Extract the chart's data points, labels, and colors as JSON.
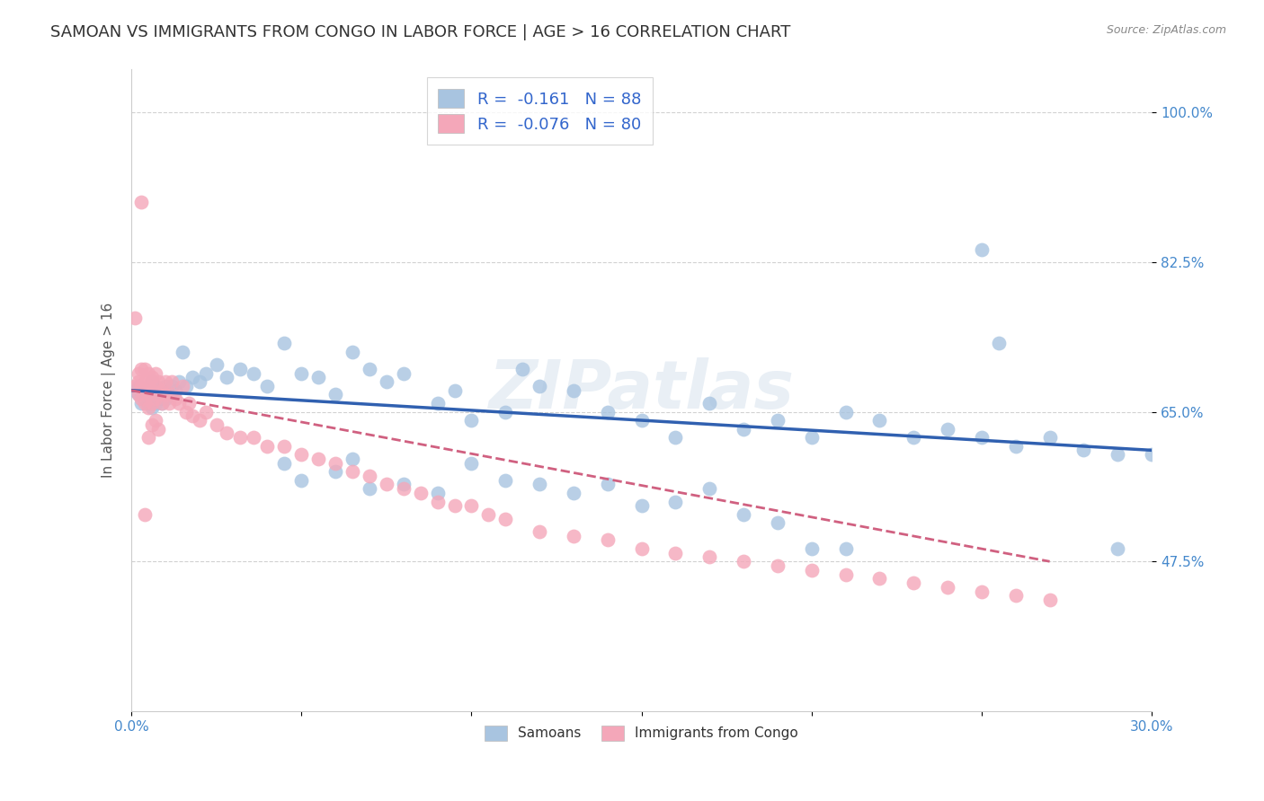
{
  "title": "SAMOAN VS IMMIGRANTS FROM CONGO IN LABOR FORCE | AGE > 16 CORRELATION CHART",
  "source": "Source: ZipAtlas.com",
  "ylabel": "In Labor Force | Age > 16",
  "xlim": [
    0.0,
    0.3
  ],
  "ylim": [
    0.3,
    1.05
  ],
  "xtick_positions": [
    0.0,
    0.05,
    0.1,
    0.15,
    0.2,
    0.25,
    0.3
  ],
  "xticklabels_show": [
    "0.0%",
    "",
    "",
    "",
    "",
    "",
    "30.0%"
  ],
  "ytick_positions": [
    0.475,
    0.65,
    0.825,
    1.0
  ],
  "ytick_labels": [
    "47.5%",
    "65.0%",
    "82.5%",
    "100.0%"
  ],
  "legend_label1": "R =  -0.161   N = 88",
  "legend_label2": "R =  -0.076   N = 80",
  "legend_label1_bottom": "Samoans",
  "legend_label2_bottom": "Immigrants from Congo",
  "samoans_color": "#a8c4e0",
  "congo_color": "#f4a7b9",
  "samoans_line_color": "#3060b0",
  "congo_line_color": "#d06080",
  "watermark": "ZIPatlas",
  "title_fontsize": 13,
  "axis_label_fontsize": 11,
  "tick_fontsize": 11,
  "samoans_x": [
    0.001,
    0.002,
    0.002,
    0.003,
    0.003,
    0.004,
    0.004,
    0.005,
    0.005,
    0.006,
    0.006,
    0.006,
    0.007,
    0.007,
    0.008,
    0.008,
    0.009,
    0.009,
    0.01,
    0.01,
    0.011,
    0.012,
    0.013,
    0.014,
    0.015,
    0.016,
    0.018,
    0.02,
    0.022,
    0.025,
    0.028,
    0.032,
    0.036,
    0.04,
    0.045,
    0.05,
    0.055,
    0.06,
    0.065,
    0.07,
    0.075,
    0.08,
    0.09,
    0.095,
    0.1,
    0.11,
    0.115,
    0.12,
    0.13,
    0.14,
    0.15,
    0.16,
    0.17,
    0.18,
    0.19,
    0.2,
    0.21,
    0.22,
    0.23,
    0.24,
    0.25,
    0.26,
    0.27,
    0.28,
    0.29,
    0.3,
    0.045,
    0.05,
    0.06,
    0.065,
    0.07,
    0.08,
    0.09,
    0.1,
    0.11,
    0.12,
    0.13,
    0.14,
    0.15,
    0.16,
    0.17,
    0.18,
    0.19,
    0.2,
    0.21,
    0.29,
    0.25,
    0.255
  ],
  "samoans_y": [
    0.675,
    0.67,
    0.68,
    0.66,
    0.67,
    0.665,
    0.675,
    0.66,
    0.67,
    0.655,
    0.67,
    0.685,
    0.66,
    0.68,
    0.665,
    0.675,
    0.66,
    0.67,
    0.665,
    0.68,
    0.67,
    0.68,
    0.675,
    0.685,
    0.72,
    0.68,
    0.69,
    0.685,
    0.695,
    0.705,
    0.69,
    0.7,
    0.695,
    0.68,
    0.73,
    0.695,
    0.69,
    0.67,
    0.72,
    0.7,
    0.685,
    0.695,
    0.66,
    0.675,
    0.64,
    0.65,
    0.7,
    0.68,
    0.675,
    0.65,
    0.64,
    0.62,
    0.66,
    0.63,
    0.64,
    0.62,
    0.65,
    0.64,
    0.62,
    0.63,
    0.62,
    0.61,
    0.62,
    0.605,
    0.6,
    0.6,
    0.59,
    0.57,
    0.58,
    0.595,
    0.56,
    0.565,
    0.555,
    0.59,
    0.57,
    0.565,
    0.555,
    0.565,
    0.54,
    0.545,
    0.56,
    0.53,
    0.52,
    0.49,
    0.49,
    0.49,
    0.84,
    0.73
  ],
  "congo_x": [
    0.001,
    0.001,
    0.002,
    0.002,
    0.002,
    0.003,
    0.003,
    0.003,
    0.004,
    0.004,
    0.004,
    0.004,
    0.005,
    0.005,
    0.005,
    0.005,
    0.006,
    0.006,
    0.006,
    0.007,
    0.007,
    0.007,
    0.008,
    0.008,
    0.009,
    0.009,
    0.01,
    0.01,
    0.011,
    0.012,
    0.012,
    0.013,
    0.014,
    0.015,
    0.016,
    0.017,
    0.018,
    0.02,
    0.022,
    0.025,
    0.028,
    0.032,
    0.036,
    0.04,
    0.045,
    0.05,
    0.055,
    0.06,
    0.065,
    0.07,
    0.075,
    0.08,
    0.085,
    0.09,
    0.095,
    0.1,
    0.105,
    0.11,
    0.12,
    0.13,
    0.14,
    0.15,
    0.16,
    0.17,
    0.18,
    0.19,
    0.2,
    0.21,
    0.22,
    0.23,
    0.24,
    0.25,
    0.26,
    0.27,
    0.005,
    0.006,
    0.007,
    0.008,
    0.004,
    0.003
  ],
  "congo_y": [
    0.68,
    0.76,
    0.67,
    0.685,
    0.695,
    0.665,
    0.68,
    0.7,
    0.66,
    0.675,
    0.685,
    0.7,
    0.655,
    0.67,
    0.68,
    0.695,
    0.66,
    0.675,
    0.69,
    0.665,
    0.68,
    0.695,
    0.67,
    0.685,
    0.66,
    0.675,
    0.67,
    0.685,
    0.66,
    0.67,
    0.685,
    0.665,
    0.66,
    0.68,
    0.65,
    0.66,
    0.645,
    0.64,
    0.65,
    0.635,
    0.625,
    0.62,
    0.62,
    0.61,
    0.61,
    0.6,
    0.595,
    0.59,
    0.58,
    0.575,
    0.565,
    0.56,
    0.555,
    0.545,
    0.54,
    0.54,
    0.53,
    0.525,
    0.51,
    0.505,
    0.5,
    0.49,
    0.485,
    0.48,
    0.475,
    0.47,
    0.465,
    0.46,
    0.455,
    0.45,
    0.445,
    0.44,
    0.435,
    0.43,
    0.62,
    0.635,
    0.64,
    0.63,
    0.53,
    0.895
  ]
}
